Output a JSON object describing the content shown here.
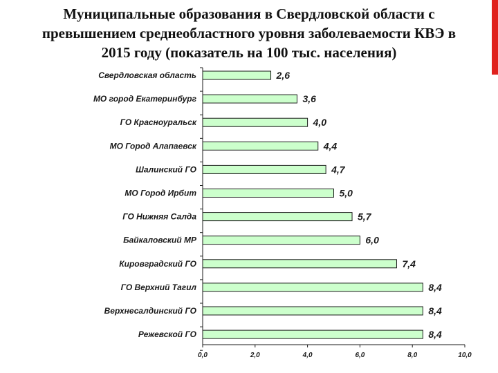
{
  "slide": {
    "title_lines": [
      "Муниципальные образования в Свердловской области с",
      "превышением среднеобластного уровня заболеваемости КВЭ в",
      "2015 году (показатель на 100 тыс. населения)"
    ]
  },
  "colors": {
    "bar_fill": "#ccffcc",
    "bar_stroke": "#1a1a1a",
    "accent": "#e0211d",
    "axis": "#1a1a1a"
  },
  "chart_data": {
    "type": "bar",
    "orientation": "horizontal",
    "title": "Муниципальные образования в Свердловской области с превышением среднеобластного уровня заболеваемости КВЭ в 2015 году (показатель на 100 тыс. населения)",
    "categories": [
      "Свердловская область",
      "МО город Екатеринбург",
      "ГО Красноуральск",
      "МО Город Алапаевск",
      "Шалинский ГО",
      "МО Город Ирбит",
      "ГО Нижняя Салда",
      "Байкаловский МР",
      "Кировградский ГО",
      "ГО Верхний Тагил",
      "Верхнесалдинский ГО",
      "Режевской ГО"
    ],
    "values": [
      2.6,
      3.6,
      4.0,
      4.4,
      4.7,
      5.0,
      5.7,
      6.0,
      7.4,
      8.4,
      8.4,
      8.4
    ],
    "value_labels": [
      "2,6",
      "3,6",
      "4,0",
      "4,4",
      "4,7",
      "5,0",
      "5,7",
      "6,0",
      "7,4",
      "8,4",
      "8,4",
      "8,4"
    ],
    "xlim": [
      0,
      10
    ],
    "ticks": [
      0,
      2,
      4,
      6,
      8,
      10
    ],
    "tick_labels": [
      "0,0",
      "2,0",
      "4,0",
      "6,0",
      "8,0",
      "10,0"
    ],
    "xlabel": "",
    "ylabel": "",
    "grid": false,
    "legend": "none"
  }
}
